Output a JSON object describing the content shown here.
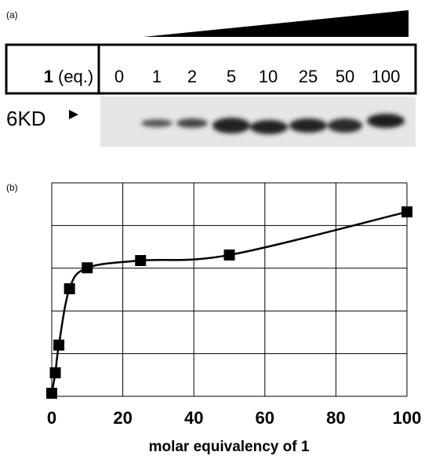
{
  "panel_a": {
    "label": "(a)",
    "row_label_bold": "1",
    "row_label": "(eq.)",
    "lanes": [
      "0",
      "1",
      "2",
      "5",
      "10",
      "25",
      "50",
      "100"
    ],
    "marker": "6KD"
  },
  "chart_data": {
    "type": "line",
    "label": "(b)",
    "x_label": "molar equivalency of 1",
    "x": [
      0,
      1,
      2,
      5,
      10,
      25,
      50,
      100
    ],
    "series": [
      {
        "color": "#000000",
        "values": [
          0.07,
          0.55,
          1.2,
          2.52,
          3.01,
          3.18,
          3.31,
          4.32
        ]
      }
    ],
    "marker": "square",
    "xlim": [
      0,
      100
    ],
    "xticks": [
      0,
      20,
      40,
      60,
      80,
      100
    ],
    "ylim": [
      0,
      5
    ],
    "grid": true
  }
}
